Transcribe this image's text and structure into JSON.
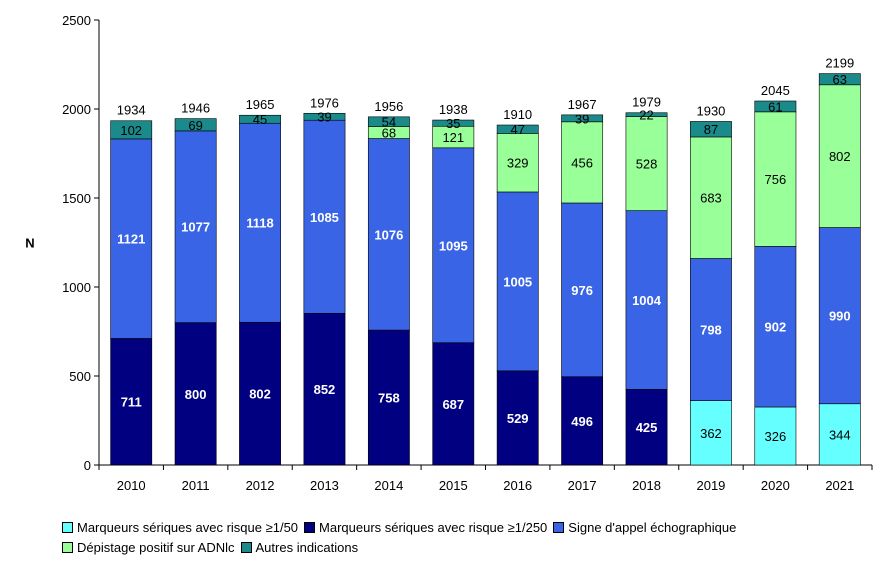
{
  "chart_data": {
    "type": "bar",
    "stacked": true,
    "title": "",
    "xlabel": "",
    "ylabel": "N",
    "ylim": [
      0,
      2500
    ],
    "yticks": [
      0,
      500,
      1000,
      1500,
      2000,
      2500
    ],
    "categories": [
      "2010",
      "2011",
      "2012",
      "2013",
      "2014",
      "2015",
      "2016",
      "2017",
      "2018",
      "2019",
      "2020",
      "2021"
    ],
    "totals": [
      1934,
      1946,
      1965,
      1976,
      1956,
      1938,
      1910,
      1967,
      1979,
      1930,
      2045,
      2199
    ],
    "series": [
      {
        "name": "Marqueurs sériques avec risque ≥1/50",
        "color": "#66FFFF",
        "label_color": "#000000",
        "values": [
          0,
          0,
          0,
          0,
          0,
          0,
          0,
          0,
          0,
          362,
          326,
          344
        ]
      },
      {
        "name": "Marqueurs sériques avec risque ≥1/250",
        "color": "#000080",
        "label_color": "#FFFFFF",
        "values": [
          711,
          800,
          802,
          852,
          758,
          687,
          529,
          496,
          425,
          0,
          0,
          0
        ]
      },
      {
        "name": "Signe d'appel échographique",
        "color": "#3A64E6",
        "label_color": "#FFFFFF",
        "values": [
          1121,
          1077,
          1118,
          1085,
          1076,
          1095,
          1005,
          976,
          1004,
          798,
          902,
          990
        ]
      },
      {
        "name": "Dépistage positif sur ADNlc",
        "color": "#99FF99",
        "label_color": "#000000",
        "values": [
          0,
          0,
          0,
          0,
          68,
          121,
          329,
          456,
          528,
          683,
          756,
          802
        ]
      },
      {
        "name": "Autres indications",
        "color": "#1A8A8A",
        "label_color": "#000000",
        "values": [
          102,
          69,
          45,
          39,
          54,
          35,
          47,
          39,
          22,
          87,
          61,
          63
        ]
      }
    ],
    "legend_position": "bottom",
    "grid": false
  },
  "legend": {
    "rows": [
      [
        0,
        1,
        2
      ],
      [
        3,
        4
      ]
    ]
  }
}
